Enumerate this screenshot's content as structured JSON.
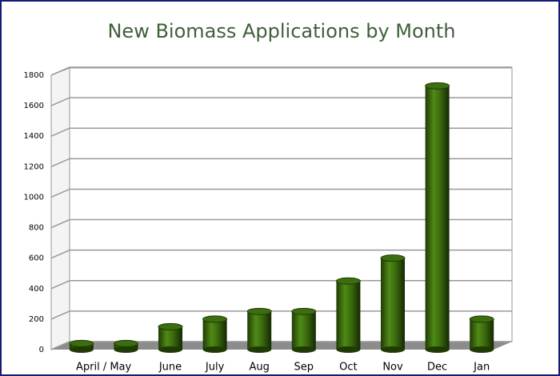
{
  "chart_data": {
    "type": "bar",
    "title": "New Biomass Applications by Month",
    "categories": [
      "April / May",
      null,
      "June",
      "July",
      "Aug",
      "Sep",
      "Oct",
      "Nov",
      "Dec",
      "Jan"
    ],
    "values": [
      40,
      40,
      150,
      200,
      250,
      250,
      450,
      600,
      1730,
      200
    ],
    "color": "#3c6d0e",
    "ylim": [
      0,
      1800
    ],
    "yticks": [
      0,
      200,
      400,
      600,
      800,
      1000,
      1200,
      1400,
      1600,
      1800
    ],
    "grid": true
  }
}
